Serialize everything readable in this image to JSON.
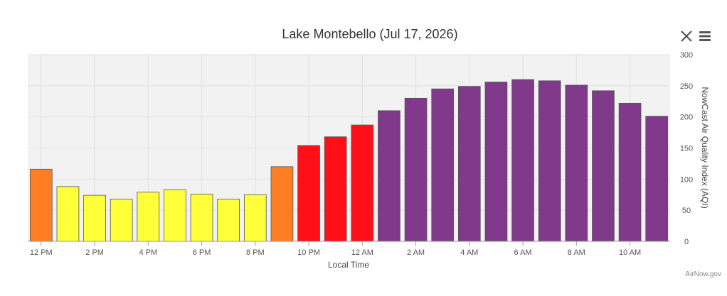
{
  "chart_data": {
    "type": "bar",
    "title": "Lake Montebello (Jul 17, 2026)",
    "xlabel": "Local Time",
    "ylabel": "NowCast Air Quality Index (AQI)",
    "ylim": [
      0,
      300
    ],
    "y_ticks": [
      0,
      50,
      100,
      150,
      200,
      250,
      300
    ],
    "y_axis_side": "right",
    "grid": true,
    "legend": "none",
    "categories": [
      "12 PM",
      "1 PM",
      "2 PM",
      "3 PM",
      "4 PM",
      "5 PM",
      "6 PM",
      "7 PM",
      "8 PM",
      "9 PM",
      "10 PM",
      "11 PM",
      "12 AM",
      "1 AM",
      "2 AM",
      "3 AM",
      "4 AM",
      "5 AM",
      "6 AM",
      "7 AM",
      "8 AM",
      "9 AM",
      "10 AM",
      "11 AM"
    ],
    "x_tick_labels": [
      "12 PM",
      "",
      "2 PM",
      "",
      "4 PM",
      "",
      "6 PM",
      "",
      "8 PM",
      "",
      "10 PM",
      "",
      "12 AM",
      "",
      "2 AM",
      "",
      "4 AM",
      "",
      "6 AM",
      "",
      "8 AM",
      "",
      "10 AM",
      ""
    ],
    "values": [
      116,
      88,
      74,
      68,
      79,
      83,
      76,
      68,
      75,
      120,
      154,
      168,
      187,
      210,
      230,
      245,
      249,
      256,
      260,
      258,
      251,
      242,
      222,
      201
    ],
    "colors": [
      "#ff7e23",
      "#ffff3a",
      "#ffff3a",
      "#ffff3a",
      "#ffff3a",
      "#ffff3a",
      "#ffff3a",
      "#ffff3a",
      "#ffff3a",
      "#ff7e23",
      "#ff1019",
      "#ff1019",
      "#ff1019",
      "#80398b",
      "#80398b",
      "#80398b",
      "#80398b",
      "#80398b",
      "#80398b",
      "#80398b",
      "#80398b",
      "#80398b",
      "#80398b",
      "#80398b"
    ]
  },
  "credit": "AirNow.gov",
  "toolbar": {
    "close_icon": "close-icon",
    "menu_icon": "menu-icon"
  }
}
